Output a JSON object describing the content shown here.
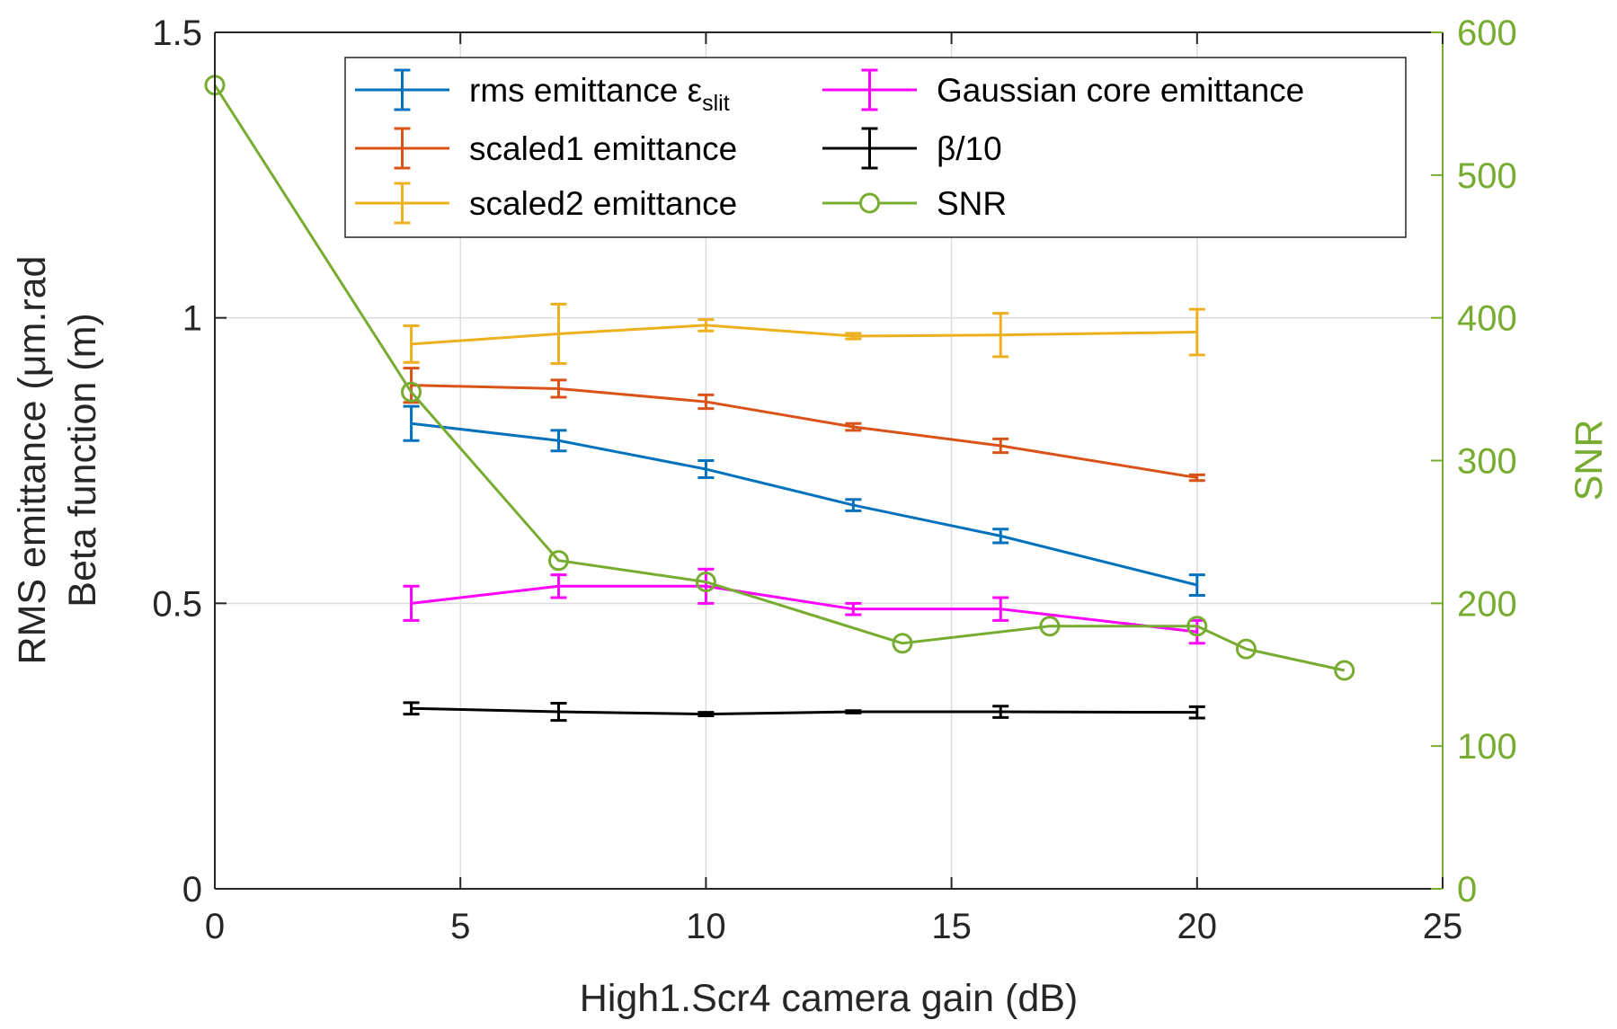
{
  "chart_data": {
    "type": "line",
    "xlabel": "High1.Scr4 camera gain (dB)",
    "ylabel_lines": [
      "RMS emittance (μm.rad",
      "Beta function (m)"
    ],
    "ylabel_right": "SNR",
    "xlim": [
      0,
      25
    ],
    "ylim": [
      0,
      1.5
    ],
    "ylim_right": [
      0,
      600
    ],
    "x_ticks": [
      "0",
      "5",
      "10",
      "15",
      "20",
      "25"
    ],
    "y_ticks": [
      "0",
      "0.5",
      "1",
      "1.5"
    ],
    "y_ticks_right": [
      "0",
      "100",
      "200",
      "300",
      "400",
      "500",
      "600"
    ],
    "grid": true,
    "legend_position": "top",
    "series": [
      {
        "name": "rms emittance ε",
        "subscript": "slit",
        "color": "#0072bd",
        "axis": "left",
        "errorbars": true,
        "marker": "none",
        "x": [
          4,
          7,
          10,
          13,
          16,
          20
        ],
        "values": [
          0.815,
          0.785,
          0.735,
          0.672,
          0.618,
          0.532
        ],
        "errors": [
          0.03,
          0.018,
          0.015,
          0.01,
          0.012,
          0.018
        ]
      },
      {
        "name": "scaled1 emittance",
        "color": "#d95319",
        "axis": "left",
        "errorbars": true,
        "marker": "none",
        "x": [
          4,
          7,
          10,
          13,
          16,
          20
        ],
        "values": [
          0.882,
          0.876,
          0.853,
          0.809,
          0.776,
          0.72
        ],
        "errors": [
          0.03,
          0.015,
          0.012,
          0.006,
          0.012,
          0.005
        ]
      },
      {
        "name": "scaled2 emittance",
        "color": "#edb120",
        "axis": "left",
        "errorbars": true,
        "marker": "none",
        "x": [
          4,
          7,
          10,
          13,
          16,
          20
        ],
        "values": [
          0.954,
          0.972,
          0.987,
          0.968,
          0.97,
          0.975
        ],
        "errors": [
          0.032,
          0.052,
          0.01,
          0.005,
          0.038,
          0.04
        ]
      },
      {
        "name": "Gaussian core emittance",
        "color": "#ff00ff",
        "axis": "left",
        "errorbars": true,
        "marker": "none",
        "x": [
          4,
          7,
          10,
          13,
          16,
          20
        ],
        "values": [
          0.5,
          0.53,
          0.53,
          0.49,
          0.49,
          0.45
        ],
        "errors": [
          0.03,
          0.02,
          0.03,
          0.01,
          0.02,
          0.02
        ]
      },
      {
        "name": "β/10",
        "color": "#000000",
        "axis": "left",
        "errorbars": true,
        "marker": "none",
        "x": [
          4,
          7,
          10,
          13,
          16,
          20
        ],
        "values": [
          0.316,
          0.31,
          0.306,
          0.31,
          0.31,
          0.309
        ],
        "errors": [
          0.01,
          0.015,
          0.003,
          0.002,
          0.01,
          0.01
        ]
      },
      {
        "name": "SNR",
        "color": "#77ac30",
        "axis": "right",
        "errorbars": false,
        "marker": "circle",
        "x": [
          0,
          4,
          7,
          10,
          14,
          17,
          20,
          21,
          23
        ],
        "values": [
          563,
          348,
          230,
          215,
          172,
          184,
          184,
          168,
          153
        ]
      }
    ]
  }
}
